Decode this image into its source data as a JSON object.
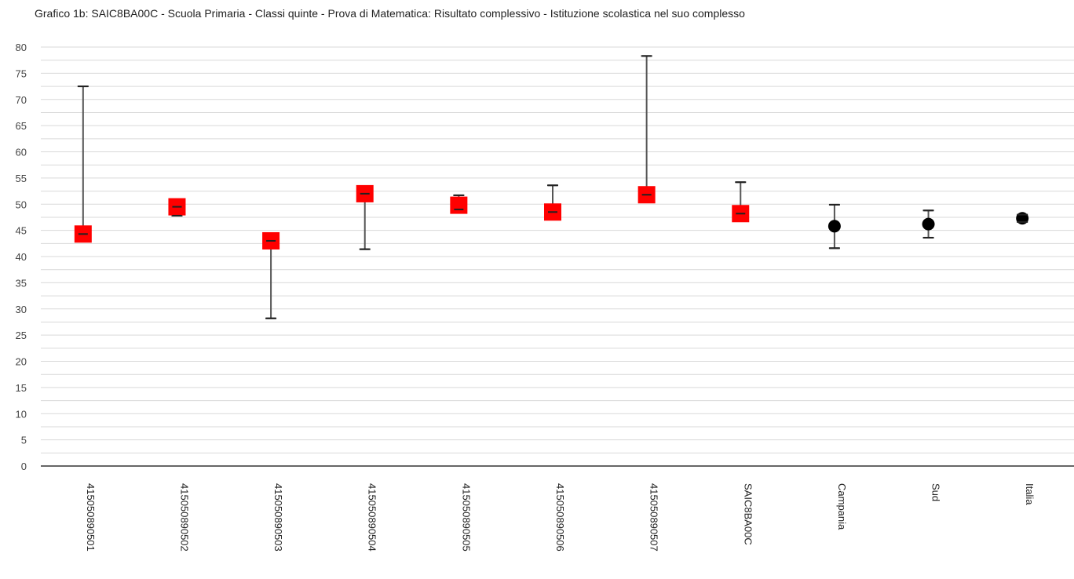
{
  "chart_data": {
    "type": "scatter",
    "title": "Grafico 1b: SAIC8BA00C - Scuola Primaria - Classi quinte - Prova di Matematica: Risultato complessivo - Istituzione scolastica nel suo complesso",
    "xlabel": "",
    "ylabel": "",
    "ylim": [
      0,
      80
    ],
    "yticks": [
      0,
      5,
      10,
      15,
      20,
      25,
      30,
      35,
      40,
      45,
      50,
      55,
      60,
      65,
      70,
      75,
      80
    ],
    "grid": true,
    "categories": [
      "415050890501",
      "415050890502",
      "415050890503",
      "415050890504",
      "415050890505",
      "415050890506",
      "415050890507",
      "SAIC8BA00C",
      "Campania",
      "Sud",
      "Italia"
    ],
    "points": [
      {
        "category": "415050890501",
        "value": 44.3,
        "low": 44.3,
        "high": 72.5,
        "marker": "square"
      },
      {
        "category": "415050890502",
        "value": 49.5,
        "low": 47.8,
        "high": 49.5,
        "marker": "square"
      },
      {
        "category": "415050890503",
        "value": 43.0,
        "low": 28.2,
        "high": 43.0,
        "marker": "square"
      },
      {
        "category": "415050890504",
        "value": 52.0,
        "low": 41.4,
        "high": 52.0,
        "marker": "square"
      },
      {
        "category": "415050890505",
        "value": 49.8,
        "low": 49.0,
        "high": 51.7,
        "marker": "square"
      },
      {
        "category": "415050890506",
        "value": 48.5,
        "low": 48.5,
        "high": 53.6,
        "marker": "square"
      },
      {
        "category": "415050890507",
        "value": 51.8,
        "low": 51.8,
        "high": 78.3,
        "marker": "square"
      },
      {
        "category": "SAIC8BA00C",
        "value": 48.2,
        "low": 48.2,
        "high": 54.2,
        "marker": "square"
      },
      {
        "category": "Campania",
        "value": 45.8,
        "low": 41.6,
        "high": 49.9,
        "marker": "circle"
      },
      {
        "category": "Sud",
        "value": 46.2,
        "low": 43.6,
        "high": 48.8,
        "marker": "circle"
      },
      {
        "category": "Italia",
        "value": 47.3,
        "low": 46.6,
        "high": 48.0,
        "marker": "circle"
      }
    ],
    "colors": {
      "square": "#ff0000",
      "circle": "#000000",
      "errorbar": "#555555",
      "grid": "#d9d9d9",
      "axis": "#333333"
    }
  }
}
